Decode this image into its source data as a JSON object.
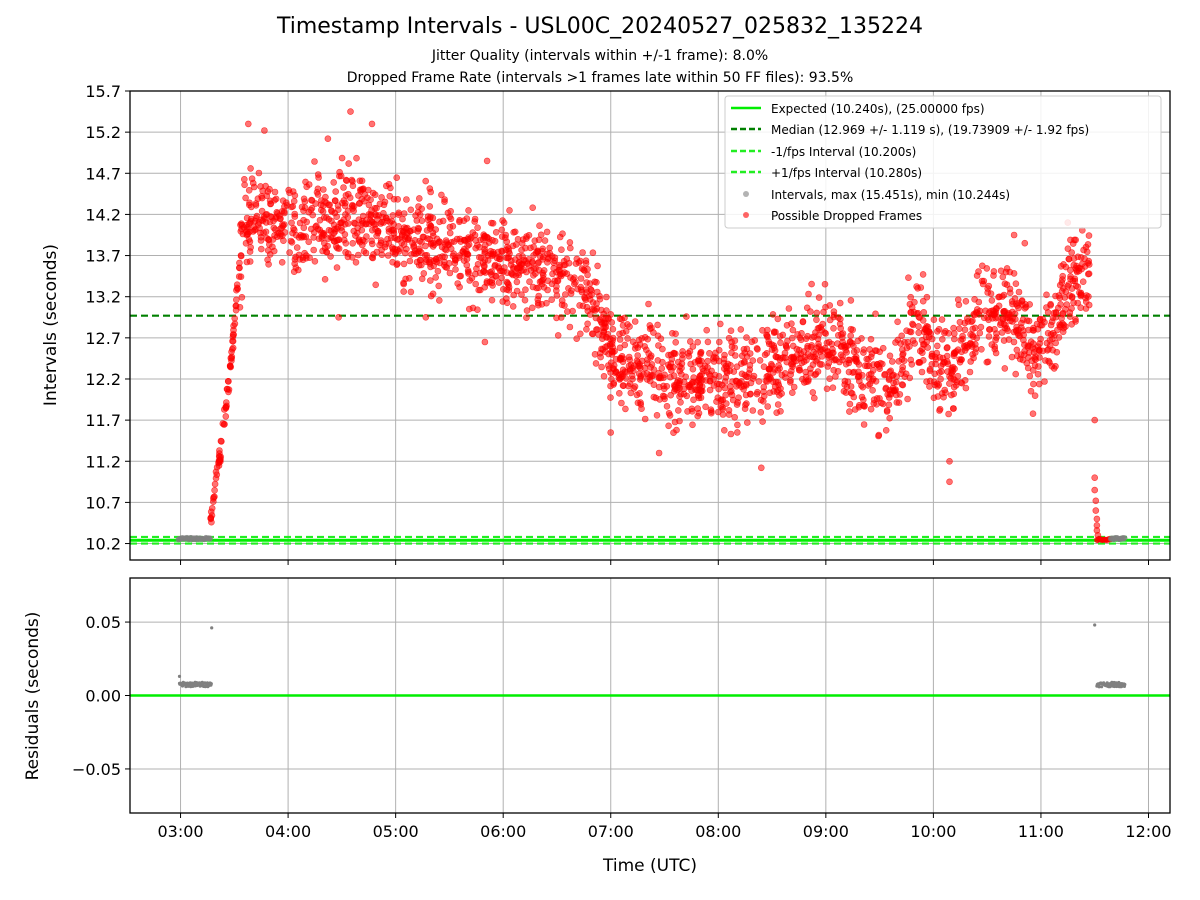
{
  "header": {
    "title": "Timestamp Intervals - USL00C_20240527_025832_135224",
    "subtitle1": "Jitter Quality (intervals within +/-1 frame): 8.0%",
    "subtitle2": "Dropped Frame Rate (intervals >1 frames late within 50 FF files): 93.5%"
  },
  "colors": {
    "expected": "#00ee00",
    "median": "#008000",
    "fps_interval": "#22ee22",
    "intervals": "#808080",
    "dropped": "#ff0000",
    "grid": "#b0b0b0"
  },
  "chart_data": [
    {
      "type": "scatter",
      "ylabel": "Intervals (seconds)",
      "ylim": [
        10.0,
        15.7
      ],
      "yticks": [
        "10.2",
        "10.7",
        "11.2",
        "11.7",
        "12.2",
        "12.7",
        "13.2",
        "13.7",
        "14.2",
        "14.7",
        "15.2",
        "15.7"
      ],
      "x_unit": "hours UTC",
      "xlim": [
        2.53,
        12.2
      ],
      "xticks": [
        "03:00",
        "04:00",
        "05:00",
        "06:00",
        "07:00",
        "08:00",
        "09:00",
        "10:00",
        "11:00",
        "12:00"
      ],
      "grid": true,
      "legend_position": "top-right",
      "legend": [
        "Expected (10.240s), (25.00000 fps)",
        "Median (12.969 +/- 1.119 s), (19.73909 +/- 1.92 fps)",
        "-1/fps Interval (10.200s)",
        "+1/fps Interval (10.280s)",
        "Intervals, max (15.451s), min (10.244s)",
        "Possible Dropped Frames"
      ],
      "expected_interval": 10.24,
      "median_interval": 12.969,
      "minus_fps_interval": 10.2,
      "plus_fps_interval": 10.28,
      "dropped_trend": [
        {
          "x": 3.28,
          "y": 10.5
        },
        {
          "x": 3.33,
          "y": 11.0
        },
        {
          "x": 3.4,
          "y": 11.6
        },
        {
          "x": 3.47,
          "y": 12.4
        },
        {
          "x": 3.52,
          "y": 13.2
        },
        {
          "x": 3.58,
          "y": 14.0
        },
        {
          "x": 3.75,
          "y": 14.2
        },
        {
          "x": 4.0,
          "y": 14.0
        },
        {
          "x": 4.3,
          "y": 14.15
        },
        {
          "x": 4.6,
          "y": 14.2
        },
        {
          "x": 5.0,
          "y": 13.95
        },
        {
          "x": 5.5,
          "y": 13.8
        },
        {
          "x": 6.0,
          "y": 13.65
        },
        {
          "x": 6.5,
          "y": 13.45
        },
        {
          "x": 6.8,
          "y": 13.3
        },
        {
          "x": 7.0,
          "y": 12.5
        },
        {
          "x": 7.3,
          "y": 12.35
        },
        {
          "x": 7.7,
          "y": 12.2
        },
        {
          "x": 8.2,
          "y": 12.25
        },
        {
          "x": 8.7,
          "y": 12.4
        },
        {
          "x": 9.0,
          "y": 12.7
        },
        {
          "x": 9.3,
          "y": 12.3
        },
        {
          "x": 9.6,
          "y": 12.1
        },
        {
          "x": 9.85,
          "y": 12.9
        },
        {
          "x": 10.05,
          "y": 12.3
        },
        {
          "x": 10.25,
          "y": 12.5
        },
        {
          "x": 10.45,
          "y": 13.1
        },
        {
          "x": 10.7,
          "y": 13.0
        },
        {
          "x": 10.9,
          "y": 12.6
        },
        {
          "x": 11.1,
          "y": 12.7
        },
        {
          "x": 11.25,
          "y": 13.4
        },
        {
          "x": 11.45,
          "y": 13.5
        }
      ],
      "dropped_spread": 0.55,
      "dropped_count": 2400,
      "dropped_outliers": [
        {
          "x": 3.63,
          "y": 15.3
        },
        {
          "x": 3.78,
          "y": 15.22
        },
        {
          "x": 4.37,
          "y": 15.12
        },
        {
          "x": 4.58,
          "y": 15.45
        },
        {
          "x": 4.78,
          "y": 15.3
        },
        {
          "x": 5.85,
          "y": 14.85
        },
        {
          "x": 5.83,
          "y": 12.65
        },
        {
          "x": 7.0,
          "y": 11.55
        },
        {
          "x": 7.45,
          "y": 11.3
        },
        {
          "x": 8.4,
          "y": 11.12
        },
        {
          "x": 10.15,
          "y": 11.2
        },
        {
          "x": 10.15,
          "y": 10.95
        },
        {
          "x": 4.47,
          "y": 12.95
        },
        {
          "x": 5.28,
          "y": 12.95
        },
        {
          "x": 10.75,
          "y": 13.95
        },
        {
          "x": 10.85,
          "y": 13.85
        },
        {
          "x": 11.25,
          "y": 14.1
        },
        {
          "x": 11.5,
          "y": 11.7
        }
      ],
      "recovery_points": [
        {
          "x": 11.5,
          "y": 11.0
        },
        {
          "x": 11.5,
          "y": 10.85
        },
        {
          "x": 11.51,
          "y": 10.72
        },
        {
          "x": 11.51,
          "y": 10.6
        },
        {
          "x": 11.52,
          "y": 10.5
        },
        {
          "x": 11.52,
          "y": 10.42
        },
        {
          "x": 11.52,
          "y": 10.36
        },
        {
          "x": 11.53,
          "y": 10.3
        }
      ],
      "low_segments": [
        {
          "x_start": 2.98,
          "x_end": 3.28,
          "y": 10.26,
          "series": "intervals"
        },
        {
          "x_start": 11.52,
          "x_end": 11.65,
          "y": 10.25,
          "series": "dropped"
        },
        {
          "x_start": 11.65,
          "x_end": 11.78,
          "y": 10.26,
          "series": "intervals"
        }
      ]
    },
    {
      "type": "scatter",
      "xlabel": "Time (UTC)",
      "ylabel": "Residuals (seconds)",
      "ylim": [
        -0.08,
        0.08
      ],
      "yticks": [
        "−0.05",
        "0.00",
        "0.05"
      ],
      "ytick_values": [
        -0.05,
        0.0,
        0.05
      ],
      "zero_line": 0.0,
      "residual_points": [
        {
          "x": 2.99,
          "y": 0.013
        },
        {
          "x": 3.29,
          "y": 0.046
        },
        {
          "x": 11.5,
          "y": 0.048
        }
      ],
      "residual_segments": [
        {
          "x_start": 2.99,
          "x_end": 3.29,
          "y": 0.0075
        },
        {
          "x_start": 11.52,
          "x_end": 11.78,
          "y": 0.0075
        }
      ]
    }
  ]
}
